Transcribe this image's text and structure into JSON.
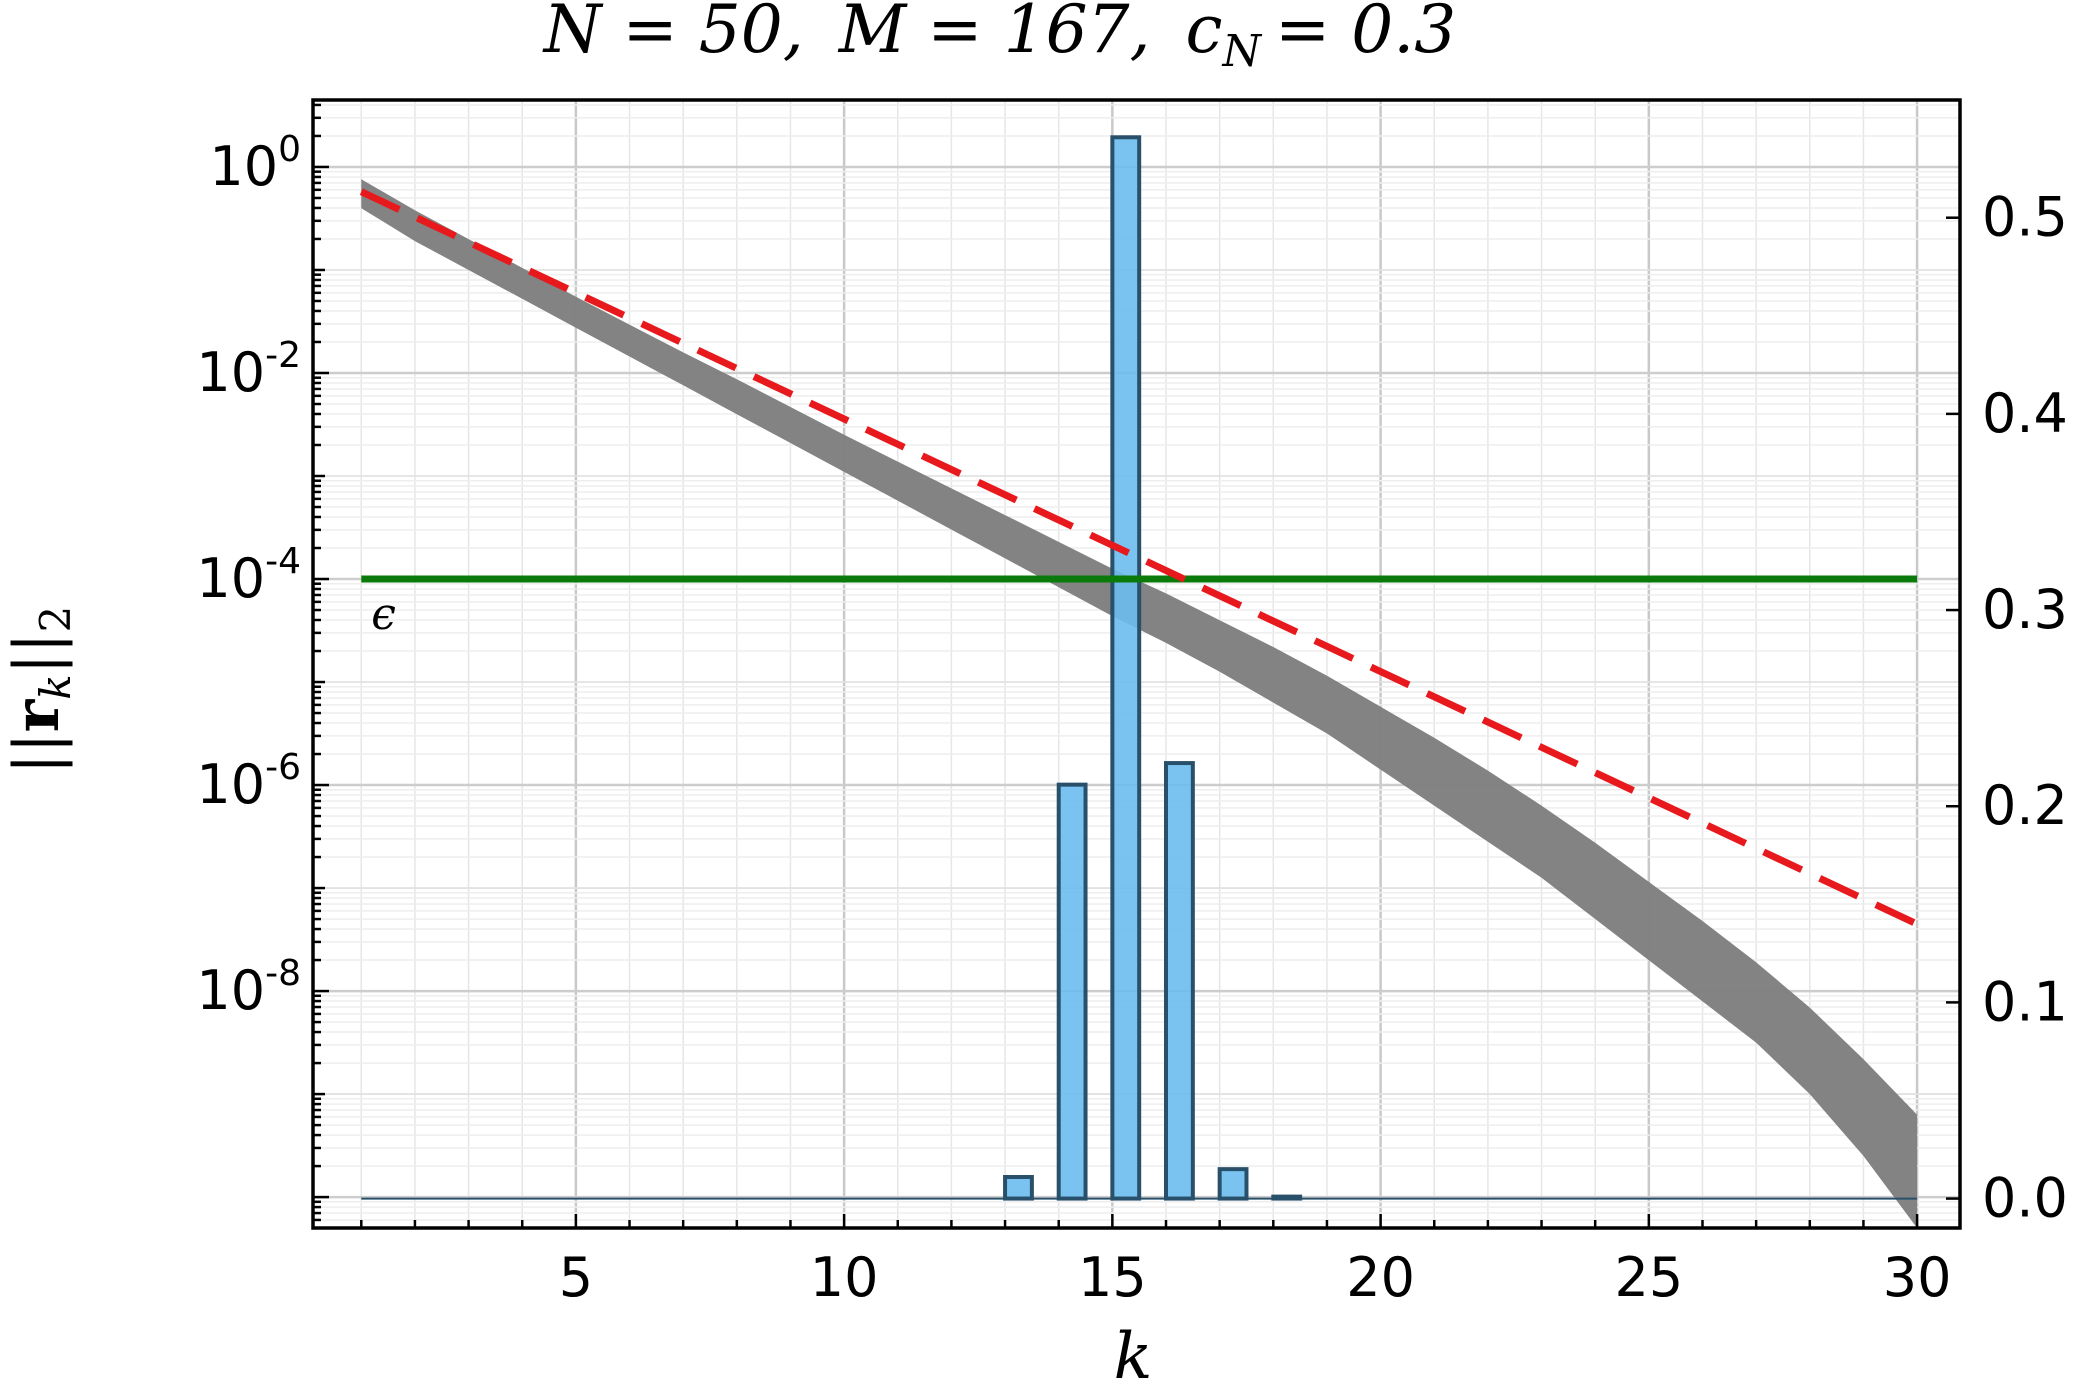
{
  "chart_data": {
    "type": "line",
    "title": "N = 50, M = 167, c_N = 0.3",
    "title_parts": {
      "n": "N = 50,",
      "m": "M = 167,",
      "c_base": "c",
      "c_sub": "N",
      "c_val": "= 0.3"
    },
    "xlabel": "k",
    "ylabel_left": "||r_k||_2",
    "ylabel_parts": {
      "bars": "||",
      "r": "r",
      "sub": "k",
      "tail": "||",
      "two": "2"
    },
    "x_range": [
      0.1,
      30.8
    ],
    "x_ticks": [
      5,
      10,
      15,
      20,
      25,
      30
    ],
    "y_left": {
      "scale": "log10",
      "range_exp": [
        -10.3,
        0.65
      ],
      "ticks": [
        {
          "exp": 0,
          "mantissa": "10",
          "power": "0"
        },
        {
          "exp": -2,
          "mantissa": "10",
          "power": "-2"
        },
        {
          "exp": -4,
          "mantissa": "10",
          "power": "-4"
        },
        {
          "exp": -6,
          "mantissa": "10",
          "power": "-6"
        },
        {
          "exp": -8,
          "mantissa": "10",
          "power": "-8"
        }
      ]
    },
    "y_right": {
      "range": [
        -0.015,
        0.56
      ],
      "ticks": [
        "0.0",
        "0.1",
        "0.2",
        "0.3",
        "0.4",
        "0.5"
      ]
    },
    "grid": true,
    "series": [
      {
        "name": "",
        "kind": "band",
        "color": "#7f7f7f",
        "x": [
          1,
          2,
          3,
          4,
          5,
          6,
          7,
          8,
          9,
          10,
          11,
          12,
          13,
          14,
          15,
          16,
          17,
          18,
          19,
          20,
          21,
          22,
          23,
          24,
          25,
          26,
          27,
          28,
          29,
          30
        ],
        "log_lower": [
          -0.4,
          -0.72,
          -1.0,
          -1.28,
          -1.56,
          -1.84,
          -2.12,
          -2.4,
          -2.68,
          -2.96,
          -3.24,
          -3.52,
          -3.8,
          -4.08,
          -4.36,
          -4.62,
          -4.9,
          -5.2,
          -5.5,
          -5.85,
          -6.2,
          -6.55,
          -6.9,
          -7.3,
          -7.7,
          -8.1,
          -8.5,
          -9.0,
          -9.6,
          -10.3
        ],
        "log_upper": [
          -0.12,
          -0.42,
          -0.7,
          -0.98,
          -1.26,
          -1.53,
          -1.8,
          -2.06,
          -2.33,
          -2.6,
          -2.86,
          -3.12,
          -3.38,
          -3.64,
          -3.9,
          -4.14,
          -4.4,
          -4.66,
          -4.94,
          -5.24,
          -5.54,
          -5.86,
          -6.2,
          -6.56,
          -6.94,
          -7.32,
          -7.72,
          -8.16,
          -8.66,
          -9.2
        ]
      },
      {
        "name": "",
        "kind": "dashed-line",
        "color": "#e8191d",
        "x": [
          1,
          30
        ],
        "log_y": [
          -0.24,
          -7.35
        ]
      },
      {
        "name": "ϵ",
        "kind": "hline",
        "color": "#0a7a0a",
        "x": [
          1,
          30
        ],
        "log_y": [
          -4,
          -4
        ]
      },
      {
        "name": "",
        "kind": "histogram",
        "axis": "right",
        "color": "#6cbdf0",
        "edge": "#28506a",
        "bars": [
          {
            "x": 13.25,
            "value": 0.011
          },
          {
            "x": 14.25,
            "value": 0.211
          },
          {
            "x": 15.25,
            "value": 0.541
          },
          {
            "x": 16.25,
            "value": 0.222
          },
          {
            "x": 17.25,
            "value": 0.015
          },
          {
            "x": 18.25,
            "value": 0.001
          }
        ],
        "bar_width": 0.5
      }
    ],
    "epsilon_label": "ϵ"
  }
}
